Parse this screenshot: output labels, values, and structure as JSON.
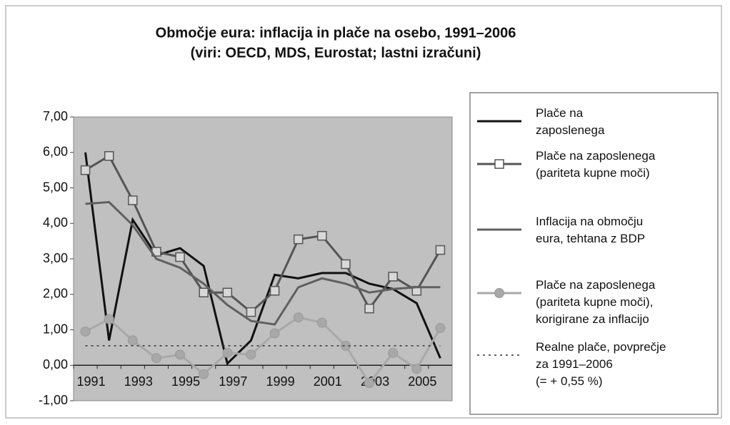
{
  "chart_data": {
    "type": "line",
    "title": "Območje eura: inflacija in plače na osebo, 1991–2006",
    "subtitle": "(viri: OECD, MDS, Eurostat; lastni izračuni)",
    "categories": [
      "1991",
      null,
      "1993",
      null,
      "1995",
      null,
      "1997",
      null,
      "1999",
      null,
      "2001",
      null,
      "2003",
      null,
      "2005",
      null
    ],
    "ylim": [
      -1,
      7
    ],
    "yticks": [
      {
        "value": -1,
        "label": "-1,00"
      },
      {
        "value": 0,
        "label": "0,00"
      },
      {
        "value": 1,
        "label": "1,00"
      },
      {
        "value": 2,
        "label": "2,00"
      },
      {
        "value": 3,
        "label": "3,00"
      },
      {
        "value": 4,
        "label": "4,00"
      },
      {
        "value": 5,
        "label": "5,00"
      },
      {
        "value": 6,
        "label": "6,00"
      },
      {
        "value": 7,
        "label": "7,00"
      }
    ],
    "series": [
      {
        "name": "Plače na\nzaposlenega",
        "color": "#111111",
        "marker": "none",
        "dashed": false,
        "values": [
          6.0,
          0.7,
          4.1,
          3.1,
          3.3,
          2.8,
          0.05,
          0.7,
          2.55,
          2.45,
          2.6,
          2.6,
          2.3,
          2.15,
          1.75,
          0.2
        ]
      },
      {
        "name": "Plače na zaposlenega\n(pariteta kupne moči)",
        "color": "#555555",
        "marker": "square",
        "dashed": false,
        "values": [
          5.5,
          5.9,
          4.65,
          3.2,
          3.05,
          2.05,
          2.05,
          1.5,
          2.1,
          3.55,
          3.65,
          2.85,
          1.6,
          2.5,
          2.1,
          3.25
        ]
      },
      {
        "name": "Inflacija na območju\neura, tehtana z BDP",
        "color": "#606060",
        "marker": "none",
        "dashed": false,
        "values": [
          4.55,
          4.6,
          3.95,
          3.0,
          2.75,
          2.3,
          1.7,
          1.25,
          1.15,
          2.2,
          2.45,
          2.3,
          2.05,
          2.15,
          2.2,
          2.2
        ]
      },
      {
        "name": "Plače na zaposlenega\n(pariteta kupne moči),\nkorigirane za inflacijo",
        "color": "#a8a8a8",
        "marker": "circle",
        "dashed": false,
        "values": [
          0.95,
          1.3,
          0.7,
          0.2,
          0.3,
          -0.25,
          0.35,
          0.3,
          0.9,
          1.35,
          1.2,
          0.55,
          -0.5,
          0.35,
          -0.1,
          1.05
        ]
      },
      {
        "name": "Realne plače, povprečje\nza 1991–2006\n(= + 0,55 %)",
        "color": "#333333",
        "marker": "none",
        "dashed": true,
        "values": [
          0.55,
          0.55,
          0.55,
          0.55,
          0.55,
          0.55,
          0.55,
          0.55,
          0.55,
          0.55,
          0.55,
          0.55,
          0.55,
          0.55,
          0.55,
          0.55
        ]
      }
    ],
    "legend": "right"
  }
}
